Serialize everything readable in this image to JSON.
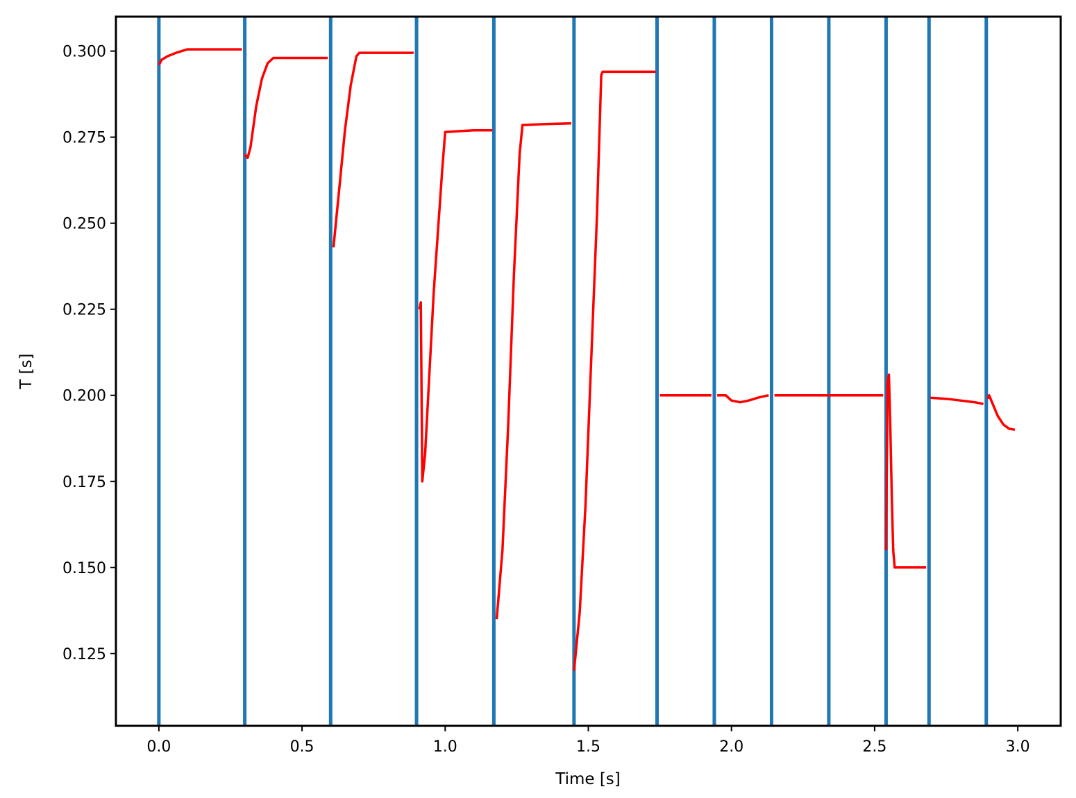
{
  "chart_data": {
    "type": "line",
    "title": "",
    "xlabel": "Time [s]",
    "ylabel": "T [s]",
    "xlim": [
      -0.15,
      3.15
    ],
    "ylim": [
      0.104,
      0.31
    ],
    "xticks": [
      0.0,
      0.5,
      1.0,
      1.5,
      2.0,
      2.5,
      3.0
    ],
    "xtick_labels": [
      "0.0",
      "0.5",
      "1.0",
      "1.5",
      "2.0",
      "2.5",
      "3.0"
    ],
    "yticks": [
      0.125,
      0.15,
      0.175,
      0.2,
      0.225,
      0.25,
      0.275,
      0.3
    ],
    "ytick_labels": [
      "0.125",
      "0.150",
      "0.175",
      "0.200",
      "0.225",
      "0.250",
      "0.275",
      "0.300"
    ],
    "grid": false,
    "legend": "none",
    "colors": {
      "series": "#ff0000",
      "markers": "#1f77b4"
    },
    "vertical_lines": [
      0.0,
      0.3,
      0.6,
      0.9,
      1.17,
      1.45,
      1.74,
      1.94,
      2.14,
      2.34,
      2.54,
      2.69,
      2.89
    ],
    "series": [
      {
        "x": [
          0.0,
          0.01,
          0.03,
          0.06,
          0.1,
          0.2,
          0.29
        ],
        "y": [
          0.296,
          0.2975,
          0.2985,
          0.2995,
          0.3005,
          0.3005,
          0.3005
        ]
      },
      {
        "x": [
          0.3,
          0.31,
          0.32,
          0.34,
          0.36,
          0.38,
          0.4,
          0.45,
          0.5,
          0.59
        ],
        "y": [
          0.27,
          0.269,
          0.272,
          0.284,
          0.292,
          0.2965,
          0.298,
          0.298,
          0.298,
          0.298
        ]
      },
      {
        "x": [
          0.61,
          0.63,
          0.65,
          0.67,
          0.69,
          0.7,
          0.75,
          0.89
        ],
        "y": [
          0.243,
          0.26,
          0.277,
          0.29,
          0.2985,
          0.2995,
          0.2995,
          0.2995
        ]
      },
      {
        "x": [
          0.91,
          0.915,
          0.92,
          0.93,
          0.96,
          0.99,
          1.0,
          1.1,
          1.165
        ],
        "y": [
          0.225,
          0.227,
          0.175,
          0.183,
          0.23,
          0.266,
          0.2765,
          0.277,
          0.277
        ]
      },
      {
        "x": [
          1.18,
          1.2,
          1.22,
          1.24,
          1.26,
          1.27,
          1.35,
          1.44
        ],
        "y": [
          0.135,
          0.155,
          0.191,
          0.235,
          0.27,
          0.2785,
          0.2788,
          0.279
        ]
      },
      {
        "x": [
          1.45,
          1.47,
          1.49,
          1.51,
          1.53,
          1.545,
          1.55,
          1.65,
          1.735
        ],
        "y": [
          0.12,
          0.137,
          0.168,
          0.21,
          0.252,
          0.293,
          0.294,
          0.294,
          0.294
        ]
      },
      {
        "x": [
          1.75,
          1.8,
          1.93
        ],
        "y": [
          0.2,
          0.2,
          0.2
        ]
      },
      {
        "x": [
          1.95,
          1.96,
          1.98,
          2.0,
          2.03,
          2.06,
          2.1,
          2.13
        ],
        "y": [
          0.2,
          0.2,
          0.2,
          0.1985,
          0.198,
          0.1985,
          0.1995,
          0.2
        ]
      },
      {
        "x": [
          2.15,
          2.2,
          2.34,
          2.45,
          2.53
        ],
        "y": [
          0.2,
          0.2,
          0.2,
          0.2,
          0.2
        ]
      },
      {
        "x": [
          2.54,
          2.545,
          2.55,
          2.555,
          2.56,
          2.565,
          2.57,
          2.6,
          2.68
        ],
        "y": [
          0.155,
          0.204,
          0.206,
          0.19,
          0.17,
          0.155,
          0.15,
          0.15,
          0.15
        ]
      },
      {
        "x": [
          2.695,
          2.75,
          2.8,
          2.85,
          2.88
        ],
        "y": [
          0.1993,
          0.199,
          0.1985,
          0.198,
          0.1975
        ]
      },
      {
        "x": [
          2.895,
          2.9,
          2.91,
          2.93,
          2.95,
          2.97,
          2.99
        ],
        "y": [
          0.199,
          0.2,
          0.198,
          0.194,
          0.1915,
          0.1903,
          0.19
        ]
      }
    ]
  }
}
